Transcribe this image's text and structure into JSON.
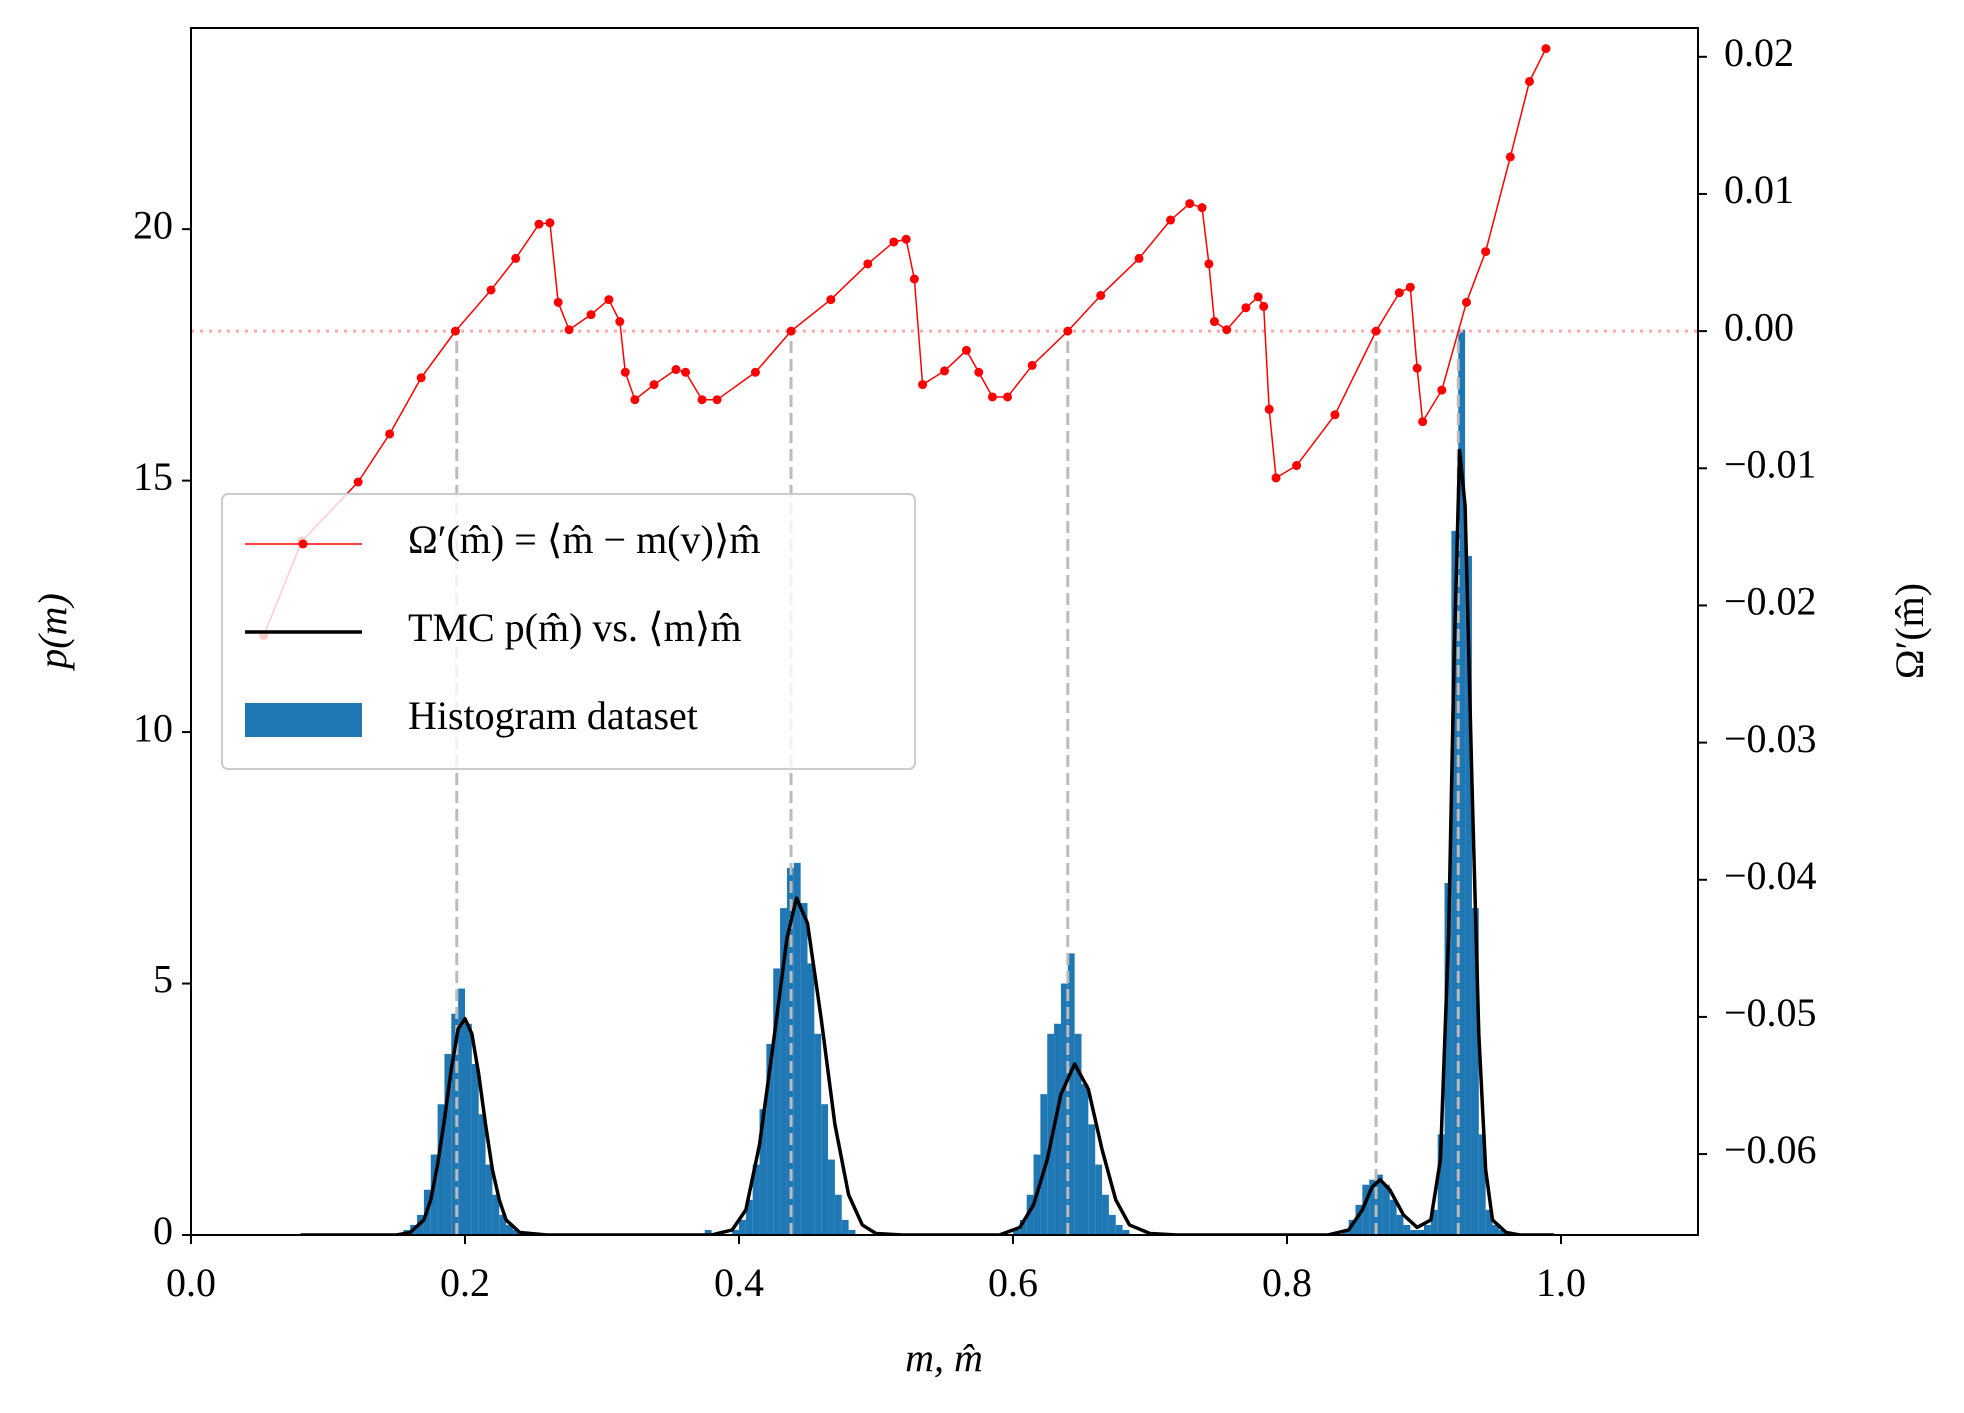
{
  "chart_data": {
    "type": "histogram",
    "xlabel": "m, m̂",
    "ylabel": "p(m)",
    "y2label": "Ω′(m̂)",
    "xlim": [
      0,
      1.1
    ],
    "ylim": [
      0,
      24
    ],
    "y2lim": [
      -0.0659,
      0.0221
    ],
    "xticks": [
      {
        "value": 0,
        "label": "0.0"
      },
      0.2,
      0.4,
      0.6,
      0.8,
      {
        "value": 1,
        "label": "1.0"
      }
    ],
    "yticks": [
      0,
      5,
      10,
      15,
      20
    ],
    "y2ticks": [
      {
        "value": -0.06,
        "label": "−0.06"
      },
      {
        "value": -0.05,
        "label": "−0.05"
      },
      {
        "value": -0.04,
        "label": "−0.04"
      },
      {
        "value": -0.03,
        "label": "−0.03"
      },
      {
        "value": -0.02,
        "label": "−0.02"
      },
      {
        "value": -0.01,
        "label": "−0.01"
      },
      {
        "value": 0,
        "label": "0.00"
      },
      0.01,
      0.02
    ],
    "y2_color": "#d62728",
    "legend": "center left",
    "vlines": [
      0.194,
      0.438,
      0.64,
      0.865,
      0.925
    ],
    "vline_color": "#bbbbbb",
    "hline_y2": 0,
    "hline_color": "#ffaaaa",
    "series": [
      {
        "name": "Ω′(m̂) = ⟨m̂ − m(v)⟩m̂",
        "type": "line",
        "marker": true,
        "axis": "y2",
        "color": "#ff0000",
        "x": [
          0.053,
          0.081,
          0.122,
          0.145,
          0.168,
          0.193,
          0.219,
          0.237,
          0.254,
          0.262,
          0.268,
          0.276,
          0.292,
          0.305,
          0.313,
          0.317,
          0.324,
          0.338,
          0.354,
          0.361,
          0.373,
          0.384,
          0.412,
          0.438,
          0.467,
          0.494,
          0.513,
          0.522,
          0.528,
          0.534,
          0.55,
          0.566,
          0.575,
          0.585,
          0.596,
          0.614,
          0.64,
          0.664,
          0.692,
          0.715,
          0.729,
          0.738,
          0.743,
          0.747,
          0.756,
          0.77,
          0.779,
          0.783,
          0.787,
          0.792,
          0.807,
          0.835,
          0.865,
          0.882,
          0.89,
          0.895,
          0.899,
          0.913,
          0.931,
          0.945,
          0.963,
          0.977,
          0.989
        ],
        "values": [
          -0.0222,
          -0.0153,
          -0.011,
          -0.0075,
          -0.0034,
          0,
          0.003,
          0.0053,
          0.0078,
          0.0079,
          0.0021,
          0.0001,
          0.0012,
          0.0023,
          0.0007,
          -0.003,
          -0.005,
          -0.0039,
          -0.0028,
          -0.003,
          -0.005,
          -0.005,
          -0.003,
          0,
          0.0023,
          0.0049,
          0.0065,
          0.0067,
          0.0038,
          -0.0039,
          -0.0029,
          -0.0014,
          -0.003,
          -0.0048,
          -0.0048,
          -0.0025,
          0,
          0.0026,
          0.0053,
          0.0081,
          0.0093,
          0.009,
          0.0049,
          0.0007,
          0.0001,
          0.0017,
          0.0025,
          0.0018,
          -0.0057,
          -0.0107,
          -0.0098,
          -0.0061,
          0,
          0.0028,
          0.0032,
          -0.0027,
          -0.0066,
          -0.0043,
          0.0021,
          0.0058,
          0.0127,
          0.0182,
          0.0206
        ]
      },
      {
        "name": "TMC p(m̂) vs. ⟨m⟩m̂",
        "type": "line",
        "color": "#000000",
        "x": [
          0.08,
          0.15,
          0.16,
          0.17,
          0.175,
          0.18,
          0.185,
          0.19,
          0.195,
          0.2,
          0.205,
          0.21,
          0.215,
          0.22,
          0.225,
          0.23,
          0.24,
          0.26,
          0.38,
          0.395,
          0.405,
          0.415,
          0.425,
          0.435,
          0.442,
          0.45,
          0.46,
          0.47,
          0.48,
          0.49,
          0.5,
          0.52,
          0.59,
          0.605,
          0.615,
          0.625,
          0.635,
          0.645,
          0.655,
          0.665,
          0.675,
          0.685,
          0.7,
          0.72,
          0.83,
          0.845,
          0.855,
          0.862,
          0.868,
          0.875,
          0.885,
          0.895,
          0.905,
          0.912,
          0.918,
          0.922,
          0.926,
          0.93,
          0.935,
          0.94,
          0.945,
          0.95,
          0.96,
          0.97,
          0.995
        ],
        "values": [
          0,
          0,
          0.05,
          0.3,
          0.7,
          1.4,
          2.3,
          3.3,
          4.1,
          4.3,
          4,
          3.2,
          2.2,
          1.3,
          0.7,
          0.3,
          0.05,
          0,
          0,
          0.1,
          0.5,
          1.8,
          3.8,
          5.9,
          6.7,
          6.2,
          4.3,
          2.2,
          0.8,
          0.2,
          0.03,
          0,
          0,
          0.15,
          0.6,
          1.5,
          2.8,
          3.4,
          2.9,
          1.7,
          0.7,
          0.2,
          0.03,
          0,
          0,
          0.1,
          0.5,
          0.95,
          1.1,
          0.9,
          0.4,
          0.15,
          0.3,
          1.5,
          6,
          11.5,
          15.6,
          14.5,
          9,
          4,
          1.3,
          0.3,
          0.05,
          0,
          0
        ]
      },
      {
        "name": "Histogram dataset",
        "type": "histogram",
        "color": "#1f77b4",
        "bins": [
          0.15,
          0.155,
          0.16,
          0.165,
          0.17,
          0.175,
          0.18,
          0.185,
          0.19,
          0.195,
          0.2,
          0.205,
          0.21,
          0.215,
          0.22,
          0.225,
          0.23,
          0.235,
          0.24,
          0.245,
          0.25,
          0.255,
          0.26,
          0.265,
          0.27,
          0.275,
          0.28,
          0.285,
          0.29,
          0.295,
          0.3,
          0.305,
          0.31,
          0.315,
          0.32,
          0.325,
          0.33,
          0.335,
          0.34,
          0.345,
          0.35,
          0.355,
          0.36,
          0.365,
          0.37,
          0.375,
          0.38,
          0.385,
          0.39,
          0.395,
          0.4,
          0.405,
          0.41,
          0.415,
          0.42,
          0.425,
          0.43,
          0.435,
          0.44,
          0.445,
          0.45,
          0.455,
          0.46,
          0.465,
          0.47,
          0.475,
          0.48,
          0.485,
          0.49,
          0.495,
          0.5,
          0.505,
          0.51,
          0.515,
          0.52,
          0.525,
          0.53,
          0.535,
          0.54,
          0.545,
          0.55,
          0.555,
          0.56,
          0.565,
          0.57,
          0.575,
          0.58,
          0.585,
          0.59,
          0.595,
          0.6,
          0.605,
          0.61,
          0.615,
          0.62,
          0.625,
          0.63,
          0.635,
          0.64,
          0.645,
          0.65,
          0.655,
          0.66,
          0.665,
          0.67,
          0.675,
          0.68,
          0.685,
          0.69,
          0.695,
          0.7,
          0.705,
          0.71,
          0.715,
          0.72,
          0.725,
          0.73,
          0.735,
          0.74,
          0.745,
          0.75,
          0.755,
          0.76,
          0.765,
          0.77,
          0.775,
          0.78,
          0.785,
          0.79,
          0.795,
          0.8,
          0.805,
          0.81,
          0.815,
          0.82,
          0.825,
          0.83,
          0.835,
          0.84,
          0.845,
          0.85,
          0.855,
          0.86,
          0.865,
          0.87,
          0.875,
          0.88,
          0.885,
          0.89,
          0.895,
          0.9,
          0.905,
          0.91,
          0.915,
          0.92,
          0.925,
          0.93,
          0.935,
          0.94,
          0.945,
          0.95,
          0.955,
          0.96
        ],
        "values": [
          0,
          0.1,
          0.2,
          0.4,
          0.9,
          1.6,
          2.6,
          3.6,
          4.4,
          4.9,
          4.2,
          3.4,
          2.4,
          1.4,
          0.8,
          0.4,
          0.2,
          0.1,
          0,
          0,
          0,
          0,
          0,
          0,
          0,
          0,
          0,
          0,
          0,
          0,
          0,
          0,
          0,
          0,
          0,
          0,
          0,
          0,
          0,
          0,
          0,
          0,
          0,
          0,
          0,
          0.1,
          0,
          0,
          0,
          0.1,
          0.3,
          0.7,
          1.4,
          2.5,
          3.8,
          5.3,
          6.5,
          7.3,
          7.4,
          6.6,
          5.4,
          4,
          2.6,
          1.5,
          0.8,
          0.3,
          0.1,
          0,
          0,
          0,
          0,
          0,
          0,
          0,
          0,
          0,
          0,
          0,
          0,
          0,
          0,
          0,
          0,
          0,
          0,
          0,
          0,
          0,
          0,
          0,
          0.1,
          0.3,
          0.8,
          1.6,
          2.8,
          4,
          4.2,
          5,
          5.6,
          4,
          3,
          2.2,
          1.4,
          0.8,
          0.4,
          0.2,
          0.1,
          0,
          0,
          0,
          0,
          0,
          0,
          0,
          0,
          0,
          0,
          0,
          0,
          0,
          0,
          0,
          0,
          0,
          0,
          0,
          0,
          0,
          0,
          0,
          0,
          0,
          0,
          0,
          0,
          0,
          0,
          0,
          0.1,
          0.3,
          0.6,
          1,
          1.1,
          1.2,
          1,
          0.7,
          0.4,
          0.2,
          0.1,
          0.1,
          0.2,
          0.5,
          2,
          7,
          14,
          18,
          13.5,
          6.5,
          2,
          0.5,
          0.2,
          0.1
        ]
      }
    ]
  }
}
